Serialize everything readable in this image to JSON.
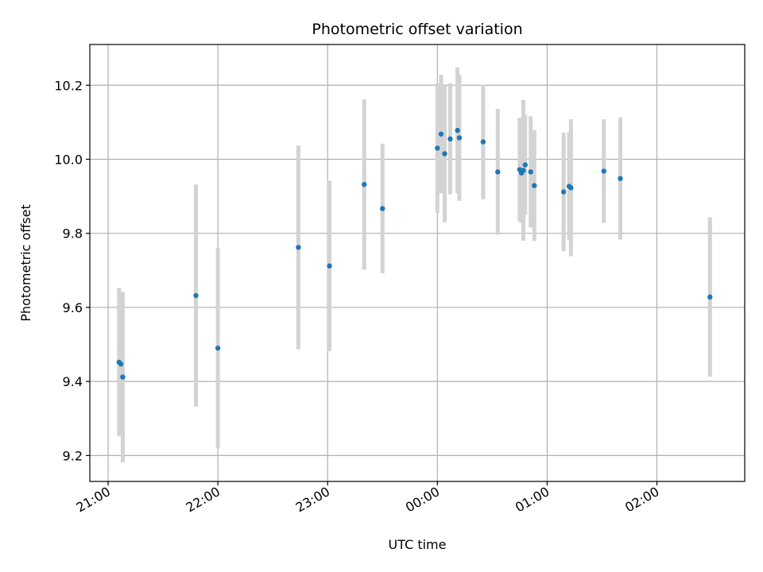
{
  "chart_data": {
    "type": "scatter",
    "title": "Photometric offset variation",
    "xlabel": "UTC time",
    "ylabel": "Photometric offset",
    "x_tick_labels": [
      "21:00",
      "22:00",
      "23:00",
      "00:00",
      "01:00",
      "02:00"
    ],
    "y_tick_labels": [
      "9.2",
      "9.4",
      "9.6",
      "9.8",
      "10.0",
      "10.2"
    ],
    "y_ticks": [
      9.2,
      9.4,
      9.6,
      9.8,
      10.0,
      10.2
    ],
    "ylim": [
      9.13,
      10.31
    ],
    "xlim": [
      "20:50",
      "02:48"
    ],
    "grid": true,
    "colors": {
      "point": "#1f77b4",
      "errorbar": "#d3d3d3",
      "grid": "#b0b0b0"
    },
    "series": [
      {
        "points": [
          {
            "x": "21:06",
            "y": 9.452,
            "err": 0.2
          },
          {
            "x": "21:07",
            "y": 9.447,
            "err": 0.19
          },
          {
            "x": "21:08",
            "y": 9.412,
            "err": 0.23
          },
          {
            "x": "21:48",
            "y": 9.632,
            "err": 0.3
          },
          {
            "x": "22:00",
            "y": 9.49,
            "err": 0.27
          },
          {
            "x": "22:44",
            "y": 9.762,
            "err": 0.275
          },
          {
            "x": "23:01",
            "y": 9.712,
            "err": 0.23
          },
          {
            "x": "23:20",
            "y": 9.932,
            "err": 0.23
          },
          {
            "x": "23:30",
            "y": 9.867,
            "err": 0.175
          },
          {
            "x": "00:00",
            "y": 10.03,
            "err": 0.175
          },
          {
            "x": "00:02",
            "y": 10.068,
            "err": 0.16
          },
          {
            "x": "00:04",
            "y": 10.015,
            "err": 0.185
          },
          {
            "x": "00:07",
            "y": 10.055,
            "err": 0.15
          },
          {
            "x": "00:11",
            "y": 10.078,
            "err": 0.17
          },
          {
            "x": "00:12",
            "y": 10.058,
            "err": 0.17
          },
          {
            "x": "00:25",
            "y": 10.047,
            "err": 0.155
          },
          {
            "x": "00:33",
            "y": 9.966,
            "err": 0.17
          },
          {
            "x": "00:45",
            "y": 9.972,
            "err": 0.14
          },
          {
            "x": "00:46",
            "y": 9.963,
            "err": 0.135
          },
          {
            "x": "00:47",
            "y": 9.97,
            "err": 0.19
          },
          {
            "x": "00:48",
            "y": 9.985,
            "err": 0.135
          },
          {
            "x": "00:51",
            "y": 9.966,
            "err": 0.15
          },
          {
            "x": "00:53",
            "y": 9.929,
            "err": 0.15
          },
          {
            "x": "01:09",
            "y": 9.912,
            "err": 0.16
          },
          {
            "x": "01:12",
            "y": 9.927,
            "err": 0.145
          },
          {
            "x": "01:13",
            "y": 9.923,
            "err": 0.185
          },
          {
            "x": "01:31",
            "y": 9.968,
            "err": 0.14
          },
          {
            "x": "01:40",
            "y": 9.948,
            "err": 0.165
          },
          {
            "x": "02:29",
            "y": 9.628,
            "err": 0.215
          }
        ]
      }
    ]
  }
}
